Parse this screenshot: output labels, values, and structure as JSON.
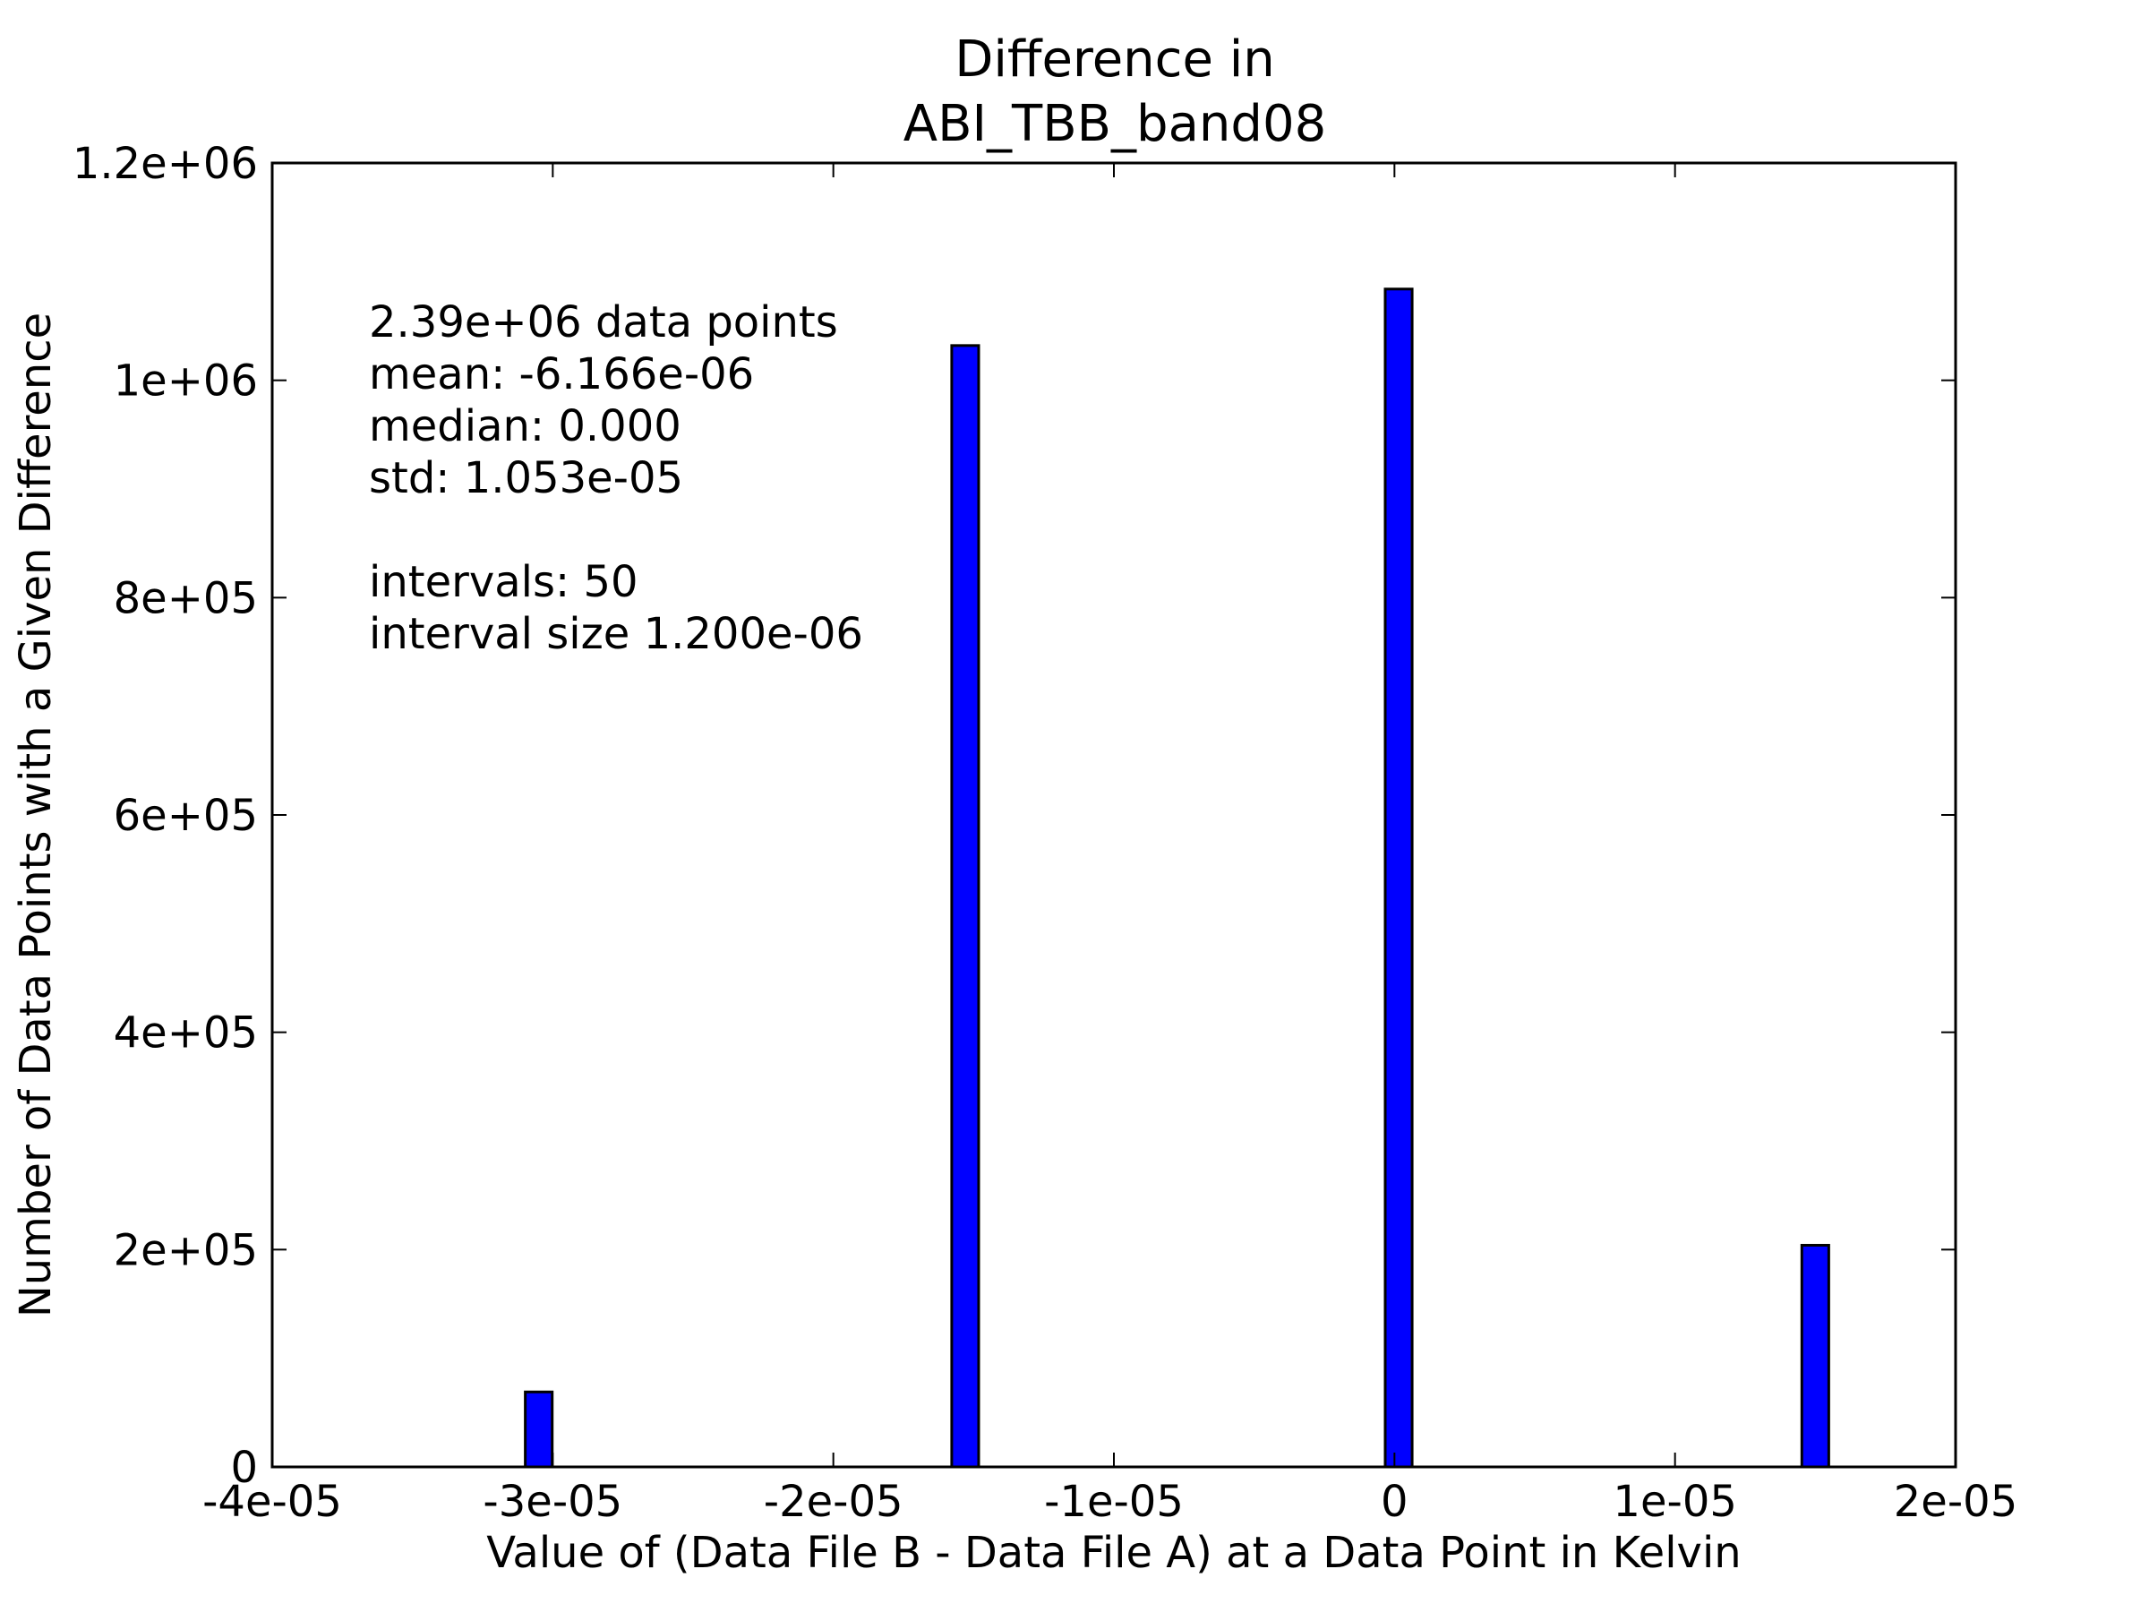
{
  "chart_data": {
    "type": "bar",
    "title_lines": [
      "Difference in",
      "ABI_TBB_band08"
    ],
    "xlabel": "Value of (Data File B - Data File A) at a Data Point in Kelvin",
    "ylabel": "Number of Data Points with a Given Difference",
    "xlim": [
      -4e-05,
      2e-05
    ],
    "ylim": [
      0,
      1200000
    ],
    "grid": false,
    "xticks": [
      -4e-05,
      -3e-05,
      -2e-05,
      -1e-05,
      0,
      1e-05,
      2e-05
    ],
    "xtick_labels": [
      "-4e-05",
      "-3e-05",
      "-2e-05",
      "-1e-05",
      "0",
      "1e-05",
      "2e-05"
    ],
    "yticks": [
      0,
      200000,
      400000,
      600000,
      800000,
      1000000,
      1200000
    ],
    "ytick_labels": [
      "0",
      "2e+05",
      "4e+05",
      "6e+05",
      "8e+05",
      "1e+06",
      "1.2e+06"
    ],
    "bar_width": 9.6e-07,
    "bar_color": "#0000ff",
    "bars": [
      {
        "x": -3.05e-05,
        "value": 69000
      },
      {
        "x": -1.53e-05,
        "value": 1032000
      },
      {
        "x": 1.5e-07,
        "value": 1084000
      },
      {
        "x": 1.5e-05,
        "value": 204000
      }
    ],
    "annotation_lines": [
      "2.39e+06 data points",
      "mean: -6.166e-06",
      "median: 0.000",
      "std: 1.053e-05",
      "",
      "intervals: 50",
      "interval size 1.200e-06"
    ]
  }
}
